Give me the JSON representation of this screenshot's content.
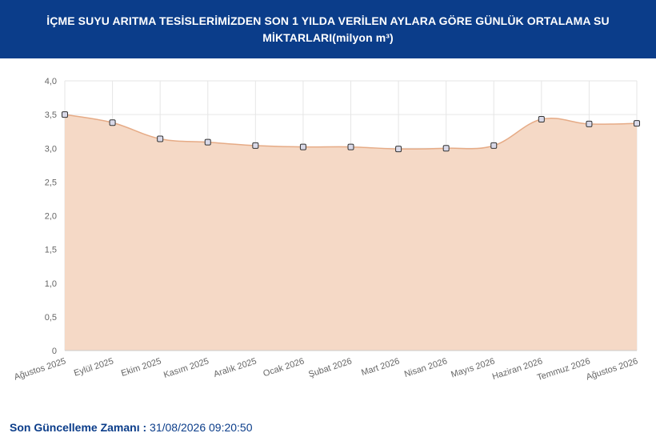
{
  "header": {
    "title": "İÇME SUYU ARITMA TESİSLERİMİZDEN SON 1 YILDA VERİLEN AYLARA GÖRE GÜNLÜK ORTALAMA SU MİKTARLARI(milyon m³)"
  },
  "footer": {
    "label": "Son Güncelleme Zamanı :",
    "value": "31/08/2026 09:20:50"
  },
  "chart_data": {
    "type": "area",
    "categories": [
      "Ağustos 2025",
      "Eylül 2025",
      "Ekim 2025",
      "Kasım 2025",
      "Aralık 2025",
      "Ocak 2026",
      "Şubat 2026",
      "Mart 2026",
      "Nisan 2026",
      "Mayıs 2026",
      "Haziran 2026",
      "Temmuz 2026",
      "Ağustos 2026"
    ],
    "values": [
      3.5,
      3.38,
      3.14,
      3.09,
      3.04,
      3.02,
      3.02,
      2.99,
      3.0,
      3.04,
      3.43,
      3.36,
      3.37
    ],
    "yticks": [
      "0",
      "0,5",
      "1,0",
      "1,5",
      "2,0",
      "2,5",
      "3,0",
      "3,5",
      "4,0"
    ],
    "ylim": [
      0,
      4
    ],
    "grid": true,
    "colors": {
      "fill": "#f5d9c6",
      "line": "#e6ab86",
      "marker_fill": "#d9d9e8",
      "marker_stroke": "#333333",
      "grid": "#e6e6e6",
      "axis_text": "#666666"
    }
  }
}
